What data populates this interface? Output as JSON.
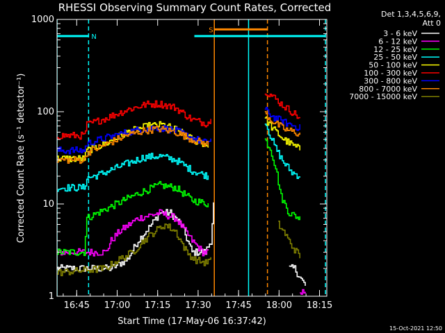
{
  "chart_data": {
    "type": "line",
    "title": "RHESSI Observing Summary Count Rates, Corrected",
    "xlabel": "Start Time (17-May-06 16:37:42)",
    "ylabel": "Corrected Count Rate (s⁻¹ detector⁻¹)",
    "y_scale": "log",
    "ylim": [
      1,
      1000
    ],
    "xlim_minutes": [
      0,
      100
    ],
    "x_ticks": [
      {
        "t": 7.3,
        "label": "16:45"
      },
      {
        "t": 22.3,
        "label": "17:00"
      },
      {
        "t": 37.3,
        "label": "17:15"
      },
      {
        "t": 52.3,
        "label": "17:30"
      },
      {
        "t": 67.3,
        "label": "17:45"
      },
      {
        "t": 82.3,
        "label": "18:00"
      },
      {
        "t": 97.3,
        "label": "18:15"
      }
    ],
    "y_ticks": [
      {
        "v": 1,
        "label": "1"
      },
      {
        "v": 10,
        "label": "10"
      },
      {
        "v": 100,
        "label": "100"
      },
      {
        "v": 1000,
        "label": "1000"
      }
    ],
    "legend_header": [
      "Det 1,3,4,5,6,9,",
      "Att 0"
    ],
    "legend_placement": "right",
    "footer_date": "15-Oct-2021 12:50",
    "flags": [
      {
        "label": "N",
        "color": "#00ffff",
        "y": 660,
        "t0": 0,
        "t1": 11.7,
        "style": "solid"
      },
      {
        "label": "",
        "color": "#00ffff",
        "y": 660,
        "t0": 50.9,
        "t1": 99.5,
        "style": "solid"
      },
      {
        "label": "S",
        "color": "#ff8800",
        "y": 780,
        "t0": 58.3,
        "t1": 78.0,
        "style": "solid"
      }
    ],
    "markers": [
      {
        "t": 0,
        "color": "#00ffff",
        "style": "solid"
      },
      {
        "t": 11.7,
        "color": "#00ffff",
        "style": "dash"
      },
      {
        "t": 58.3,
        "color": "#ff8800",
        "style": "solid"
      },
      {
        "t": 71.0,
        "color": "#00ffff",
        "style": "solid"
      },
      {
        "t": 78.0,
        "color": "#ff8800",
        "style": "dash"
      },
      {
        "t": 99.5,
        "color": "#00ffff",
        "style": "dash"
      }
    ],
    "series": [
      {
        "name": "3 - 6 keV",
        "color": "#ffffff",
        "points": [
          [
            0,
            2
          ],
          [
            20,
            2
          ],
          [
            26,
            2.5
          ],
          [
            30,
            4
          ],
          [
            35,
            6
          ],
          [
            38,
            8
          ],
          [
            42,
            8
          ],
          [
            46,
            6
          ],
          [
            50,
            3
          ],
          [
            55,
            3
          ],
          [
            57,
            4
          ],
          [
            58,
            10
          ],
          null,
          [
            86,
            2
          ],
          [
            88,
            2
          ],
          [
            90,
            1.6
          ],
          [
            92,
            1.3
          ]
        ]
      },
      {
        "name": "6 - 12 keV",
        "color": "#ff00ff",
        "points": [
          [
            0,
            3
          ],
          [
            18,
            3
          ],
          [
            20,
            4
          ],
          [
            23,
            5
          ],
          [
            30,
            7
          ],
          [
            38,
            8
          ],
          [
            44,
            7
          ],
          [
            50,
            4
          ],
          [
            54,
            3
          ],
          [
            56,
            3
          ],
          null,
          [
            90,
            1.0
          ],
          [
            92,
            1.2
          ]
        ]
      },
      {
        "name": "12 - 25 keV",
        "color": "#00ff00",
        "points": [
          [
            0,
            3
          ],
          [
            10,
            3
          ],
          [
            11,
            7
          ],
          [
            15,
            8
          ],
          [
            22,
            10
          ],
          [
            30,
            13
          ],
          [
            38,
            16
          ],
          [
            44,
            15
          ],
          [
            50,
            11
          ],
          [
            56,
            10
          ],
          null,
          [
            77,
            50
          ],
          [
            79,
            40
          ],
          [
            81,
            25
          ],
          [
            83,
            12
          ],
          [
            86,
            8
          ],
          [
            90,
            7
          ]
        ]
      },
      {
        "name": "25 - 50 keV",
        "color": "#00ffff",
        "points": [
          [
            0,
            15
          ],
          [
            10,
            15
          ],
          [
            11,
            19
          ],
          [
            16,
            21
          ],
          [
            24,
            26
          ],
          [
            32,
            32
          ],
          [
            38,
            33
          ],
          [
            44,
            30
          ],
          [
            50,
            23
          ],
          [
            56,
            20
          ],
          null,
          [
            77,
            80
          ],
          [
            79,
            55
          ],
          [
            81,
            40
          ],
          [
            84,
            28
          ],
          [
            87,
            22
          ],
          [
            90,
            20
          ]
        ]
      },
      {
        "name": "50 - 100 keV",
        "color": "#ffff00",
        "points": [
          [
            0,
            31
          ],
          [
            10,
            31
          ],
          [
            11,
            38
          ],
          [
            18,
            45
          ],
          [
            26,
            60
          ],
          [
            34,
            70
          ],
          [
            39,
            72
          ],
          [
            44,
            64
          ],
          [
            50,
            50
          ],
          [
            56,
            43
          ],
          null,
          [
            77,
            85
          ],
          [
            80,
            65
          ],
          [
            84,
            50
          ],
          [
            88,
            42
          ],
          [
            90,
            39
          ]
        ]
      },
      {
        "name": "100 - 300 keV",
        "color": "#ff0000",
        "points": [
          [
            0,
            55
          ],
          [
            10,
            55
          ],
          [
            11,
            72
          ],
          [
            18,
            85
          ],
          [
            26,
            105
          ],
          [
            33,
            120
          ],
          [
            38,
            122
          ],
          [
            44,
            110
          ],
          [
            50,
            82
          ],
          [
            55,
            75
          ],
          [
            57,
            80
          ],
          null,
          [
            77,
            170
          ],
          [
            80,
            145
          ],
          [
            84,
            115
          ],
          [
            88,
            95
          ],
          [
            90,
            85
          ]
        ]
      },
      {
        "name": "300 - 800 keV",
        "color": "#0000ff",
        "points": [
          [
            0,
            38
          ],
          [
            10,
            38
          ],
          [
            11,
            45
          ],
          [
            18,
            52
          ],
          [
            26,
            60
          ],
          [
            33,
            66
          ],
          [
            38,
            67
          ],
          [
            44,
            62
          ],
          [
            50,
            52
          ],
          [
            55,
            46
          ],
          [
            57,
            50
          ],
          null,
          [
            77,
            105
          ],
          [
            80,
            88
          ],
          [
            84,
            77
          ],
          [
            88,
            70
          ],
          [
            90,
            67
          ]
        ]
      },
      {
        "name": "800 - 7000 keV",
        "color": "#ff8800",
        "points": [
          [
            0,
            30
          ],
          [
            10,
            30
          ],
          [
            11,
            36
          ],
          [
            18,
            44
          ],
          [
            26,
            56
          ],
          [
            33,
            63
          ],
          [
            38,
            65
          ],
          [
            44,
            60
          ],
          [
            50,
            50
          ],
          [
            56,
            44
          ],
          null,
          [
            77,
            95
          ],
          [
            80,
            78
          ],
          [
            84,
            65
          ],
          [
            88,
            60
          ],
          [
            90,
            57
          ]
        ]
      },
      {
        "name": "7000 - 15000 keV",
        "color": "#808000",
        "points": [
          [
            0,
            1.8
          ],
          [
            18,
            2
          ],
          [
            22,
            2.4
          ],
          [
            28,
            3
          ],
          [
            32,
            4
          ],
          [
            36,
            5
          ],
          [
            40,
            6
          ],
          [
            44,
            5
          ],
          [
            48,
            3
          ],
          [
            51,
            2.5
          ],
          [
            55,
            2.3
          ],
          [
            57,
            2.5
          ],
          null,
          [
            82,
            6
          ],
          [
            84,
            5
          ],
          [
            87,
            3.5
          ],
          [
            90,
            2.7
          ]
        ]
      }
    ]
  }
}
